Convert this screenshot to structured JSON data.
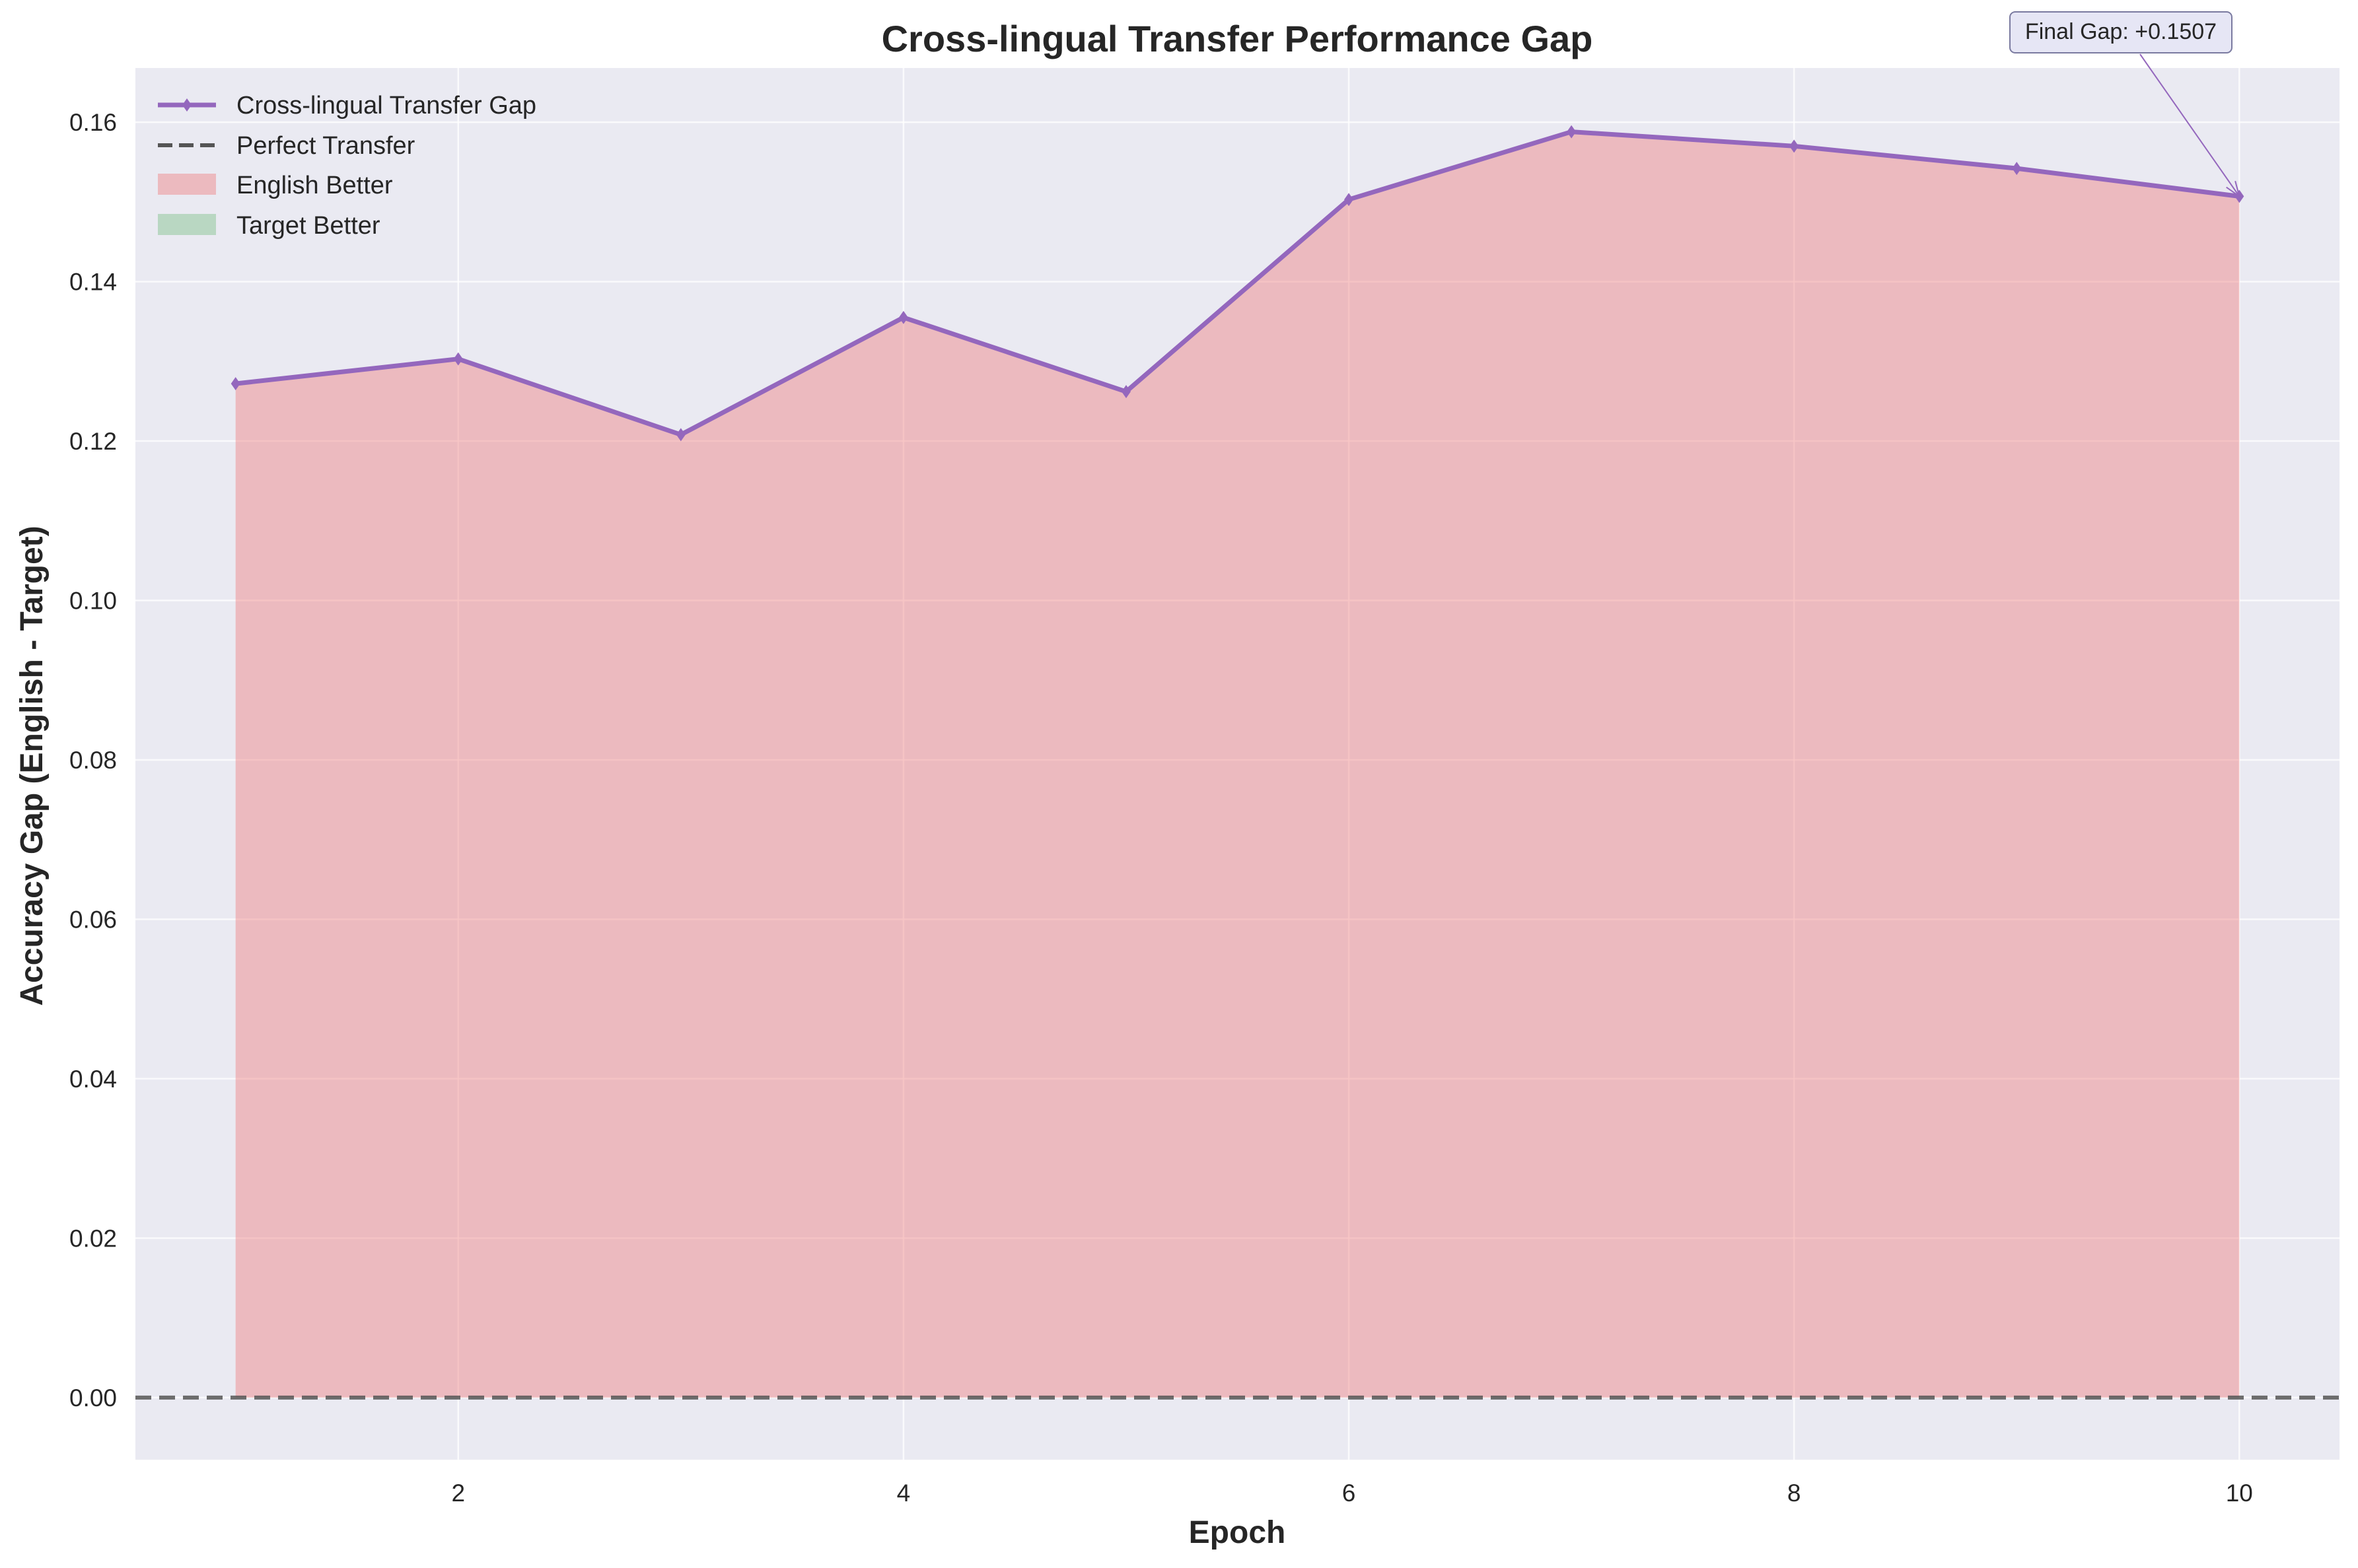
{
  "chart_data": {
    "type": "area",
    "title": "Cross-lingual Transfer Performance Gap",
    "xlabel": "Epoch",
    "ylabel": "Accuracy Gap (English - Target)",
    "xlim": [
      0.55,
      10.45
    ],
    "ylim": [
      -0.0078,
      0.1668
    ],
    "x_ticks": [
      2,
      4,
      6,
      8,
      10
    ],
    "y_ticks": [
      0.0,
      0.02,
      0.04,
      0.06,
      0.08,
      0.1,
      0.12,
      0.14,
      0.16
    ],
    "x_tick_labels": [
      "2",
      "4",
      "6",
      "8",
      "10"
    ],
    "y_tick_labels": [
      "0.00",
      "0.02",
      "0.04",
      "0.06",
      "0.08",
      "0.10",
      "0.12",
      "0.14",
      "0.16"
    ],
    "grid": true,
    "legend_position": "top-left",
    "series": [
      {
        "name": "Cross-lingual Transfer Gap",
        "color": "#9467bd",
        "marker": "diamond",
        "x": [
          1,
          2,
          3,
          4,
          5,
          6,
          7,
          8,
          9,
          10
        ],
        "y": [
          0.1272,
          0.1303,
          0.1208,
          0.1355,
          0.1262,
          0.1503,
          0.1588,
          0.157,
          0.1542,
          0.1507
        ]
      }
    ],
    "reference_line": {
      "name": "Perfect Transfer",
      "y": 0.0,
      "color": "#555555",
      "style": "dashed"
    },
    "fills": [
      {
        "name": "English Better",
        "color": "#f08080"
      },
      {
        "name": "Target Better",
        "color": "#8fc79a"
      }
    ],
    "annotation": {
      "text": "Final Gap: +0.1507",
      "x": 10,
      "y": 0.1507
    }
  },
  "colors": {
    "plot_background": "#eaeaf2",
    "grid": "#ffffff",
    "line": "#9467bd",
    "english_fill": "#f08080",
    "target_fill": "#8fc79a",
    "reference": "#555555"
  }
}
